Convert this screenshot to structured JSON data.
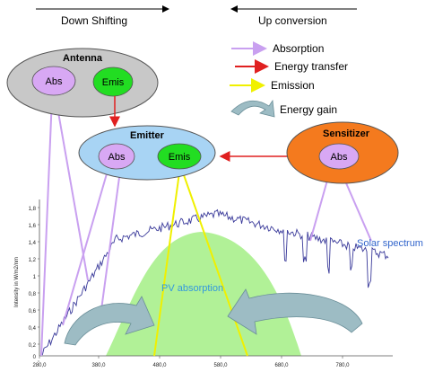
{
  "header": {
    "down_shifting": "Down Shifting",
    "up_conversion": "Up conversion"
  },
  "legend": {
    "absorption": "Absorption",
    "energy_transfer": "Energy transfer",
    "emission": "Emission",
    "energy_gain": "Energy gain"
  },
  "nodes": {
    "antenna": {
      "title": "Antenna",
      "abs": "Abs",
      "emis": "Emis"
    },
    "emitter": {
      "title": "Emitter",
      "abs": "Abs",
      "emis": "Emis"
    },
    "sensitizer": {
      "title": "Sensitizer",
      "abs": "Abs"
    }
  },
  "plot": {
    "pv_label": "PV absorption",
    "solar_label": "Solar spectrum",
    "ylabel": "Intensity in W/m2/nm",
    "y_ticks": [
      "1,8",
      "1,6",
      "1,4",
      "1,2",
      "1",
      "0,8",
      "0,6",
      "0,4",
      "0,2",
      "0"
    ],
    "x_ticks": [
      "280,0",
      "380,0",
      "480,0",
      "580,0",
      "680,0",
      "780,0"
    ]
  },
  "colors": {
    "absorption": "#c9a0f0",
    "energy_transfer": "#e02020",
    "emission": "#f0f000",
    "antenna_fill": "#c8c8c8",
    "emitter_fill": "#a8d4f4",
    "sensitizer_fill": "#f47a1e",
    "abs_fill": "#d8a8f4",
    "emis_fill": "#22dd22",
    "pv_fill": "#a8f08c",
    "spectrum": "#3a3a9a",
    "arrow_fill": "#9dbcc4"
  }
}
